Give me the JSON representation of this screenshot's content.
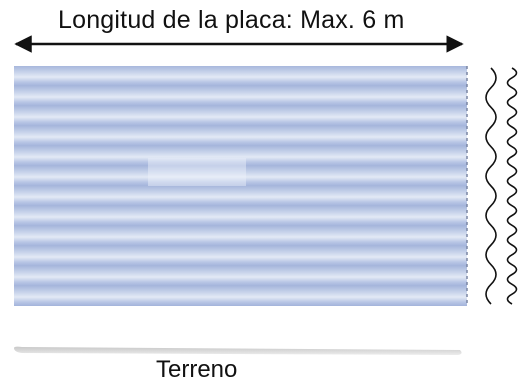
{
  "labels": {
    "length": "Longitud de la placa: Max. 6 m",
    "ground": "Terreno"
  },
  "colors": {
    "sheet_light": "#dde4f2",
    "sheet_mid": "#b7c4e4",
    "sheet_dark": "#9fb1d9",
    "ground": "#d7d7d7",
    "profile": "#111111"
  },
  "sheet": {
    "corrugation_count": 12
  }
}
